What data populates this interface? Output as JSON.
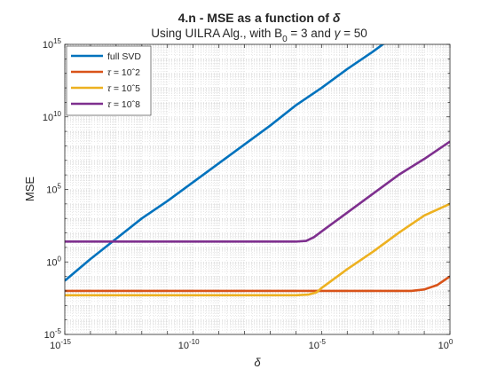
{
  "chart_data": {
    "type": "line",
    "title_prefix": "4.n - MSE as a function of ",
    "title_symbol": "δ",
    "subtitle": {
      "part1": "Using UILRA Alg., with B",
      "sub": "0",
      "part2": " = 3 and ",
      "symbol": "γ",
      "part3": " = 50"
    },
    "xlabel": "δ",
    "ylabel": "MSE",
    "xscale": "log",
    "yscale": "log",
    "xlim_exp": [
      -15,
      0
    ],
    "ylim_exp": [
      -5,
      15
    ],
    "x_ticks": [
      {
        "base": "10",
        "exp": "-15",
        "value_exp": -15
      },
      {
        "base": "10",
        "exp": "-10",
        "value_exp": -10
      },
      {
        "base": "10",
        "exp": "-5",
        "value_exp": -5
      },
      {
        "base": "10",
        "exp": "0",
        "value_exp": 0
      }
    ],
    "y_ticks": [
      {
        "base": "10",
        "exp": "-5",
        "value_exp": -5
      },
      {
        "base": "10",
        "exp": "0",
        "value_exp": 0
      },
      {
        "base": "10",
        "exp": "5",
        "value_exp": 5
      },
      {
        "base": "10",
        "exp": "10",
        "value_exp": 10
      },
      {
        "base": "10",
        "exp": "15",
        "value_exp": 15
      }
    ],
    "grid": true,
    "minor_grid": true,
    "legend_placement": "top-left",
    "series": [
      {
        "name": "full SVD",
        "color": "#0072BD",
        "points_log10": [
          [
            -15,
            -1.3
          ],
          [
            -14,
            0.2
          ],
          [
            -13,
            1.6
          ],
          [
            -12,
            3.0
          ],
          [
            -11,
            4.2
          ],
          [
            -10,
            5.5
          ],
          [
            -9,
            6.8
          ],
          [
            -8,
            8.1
          ],
          [
            -7,
            9.4
          ],
          [
            -6,
            10.8
          ],
          [
            -5,
            12.0
          ],
          [
            -4,
            13.3
          ],
          [
            -3,
            14.5
          ],
          [
            -2,
            15.8
          ],
          [
            -1,
            17.1
          ],
          [
            0,
            18.5
          ]
        ]
      },
      {
        "name": "τ = 10ˆ2",
        "color": "#D95319",
        "points_log10": [
          [
            -15,
            -2.0
          ],
          [
            -14,
            -2.0
          ],
          [
            -10,
            -2.0
          ],
          [
            -5,
            -2.0
          ],
          [
            -2,
            -2.0
          ],
          [
            -1.5,
            -2.0
          ],
          [
            -1,
            -1.9
          ],
          [
            -0.5,
            -1.6
          ],
          [
            0,
            -1.0
          ]
        ]
      },
      {
        "name": "τ = 10ˆ5",
        "color": "#EDB120",
        "points_log10": [
          [
            -15,
            -2.3
          ],
          [
            -10,
            -2.3
          ],
          [
            -6,
            -2.3
          ],
          [
            -5.5,
            -2.25
          ],
          [
            -5.2,
            -2.1
          ],
          [
            -5,
            -1.8
          ],
          [
            -4,
            -0.5
          ],
          [
            -3,
            0.7
          ],
          [
            -2,
            2.0
          ],
          [
            -1,
            3.2
          ],
          [
            0,
            4.0
          ]
        ]
      },
      {
        "name": "τ = 10ˆ8",
        "color": "#7E2F8E",
        "points_log10": [
          [
            -15,
            1.4
          ],
          [
            -10,
            1.4
          ],
          [
            -6,
            1.4
          ],
          [
            -5.6,
            1.45
          ],
          [
            -5.3,
            1.7
          ],
          [
            -5,
            2.1
          ],
          [
            -4,
            3.4
          ],
          [
            -3,
            4.7
          ],
          [
            -2,
            6.0
          ],
          [
            -1,
            7.1
          ],
          [
            0,
            8.3
          ]
        ]
      }
    ],
    "legend_labels": [
      {
        "prefix": "full SVD",
        "symbol": "",
        "suffix": ""
      },
      {
        "prefix": "",
        "symbol": "τ",
        "suffix": " = 10ˆ2"
      },
      {
        "prefix": "",
        "symbol": "τ",
        "suffix": " = 10ˆ5"
      },
      {
        "prefix": "",
        "symbol": "τ",
        "suffix": " = 10ˆ8"
      }
    ]
  }
}
